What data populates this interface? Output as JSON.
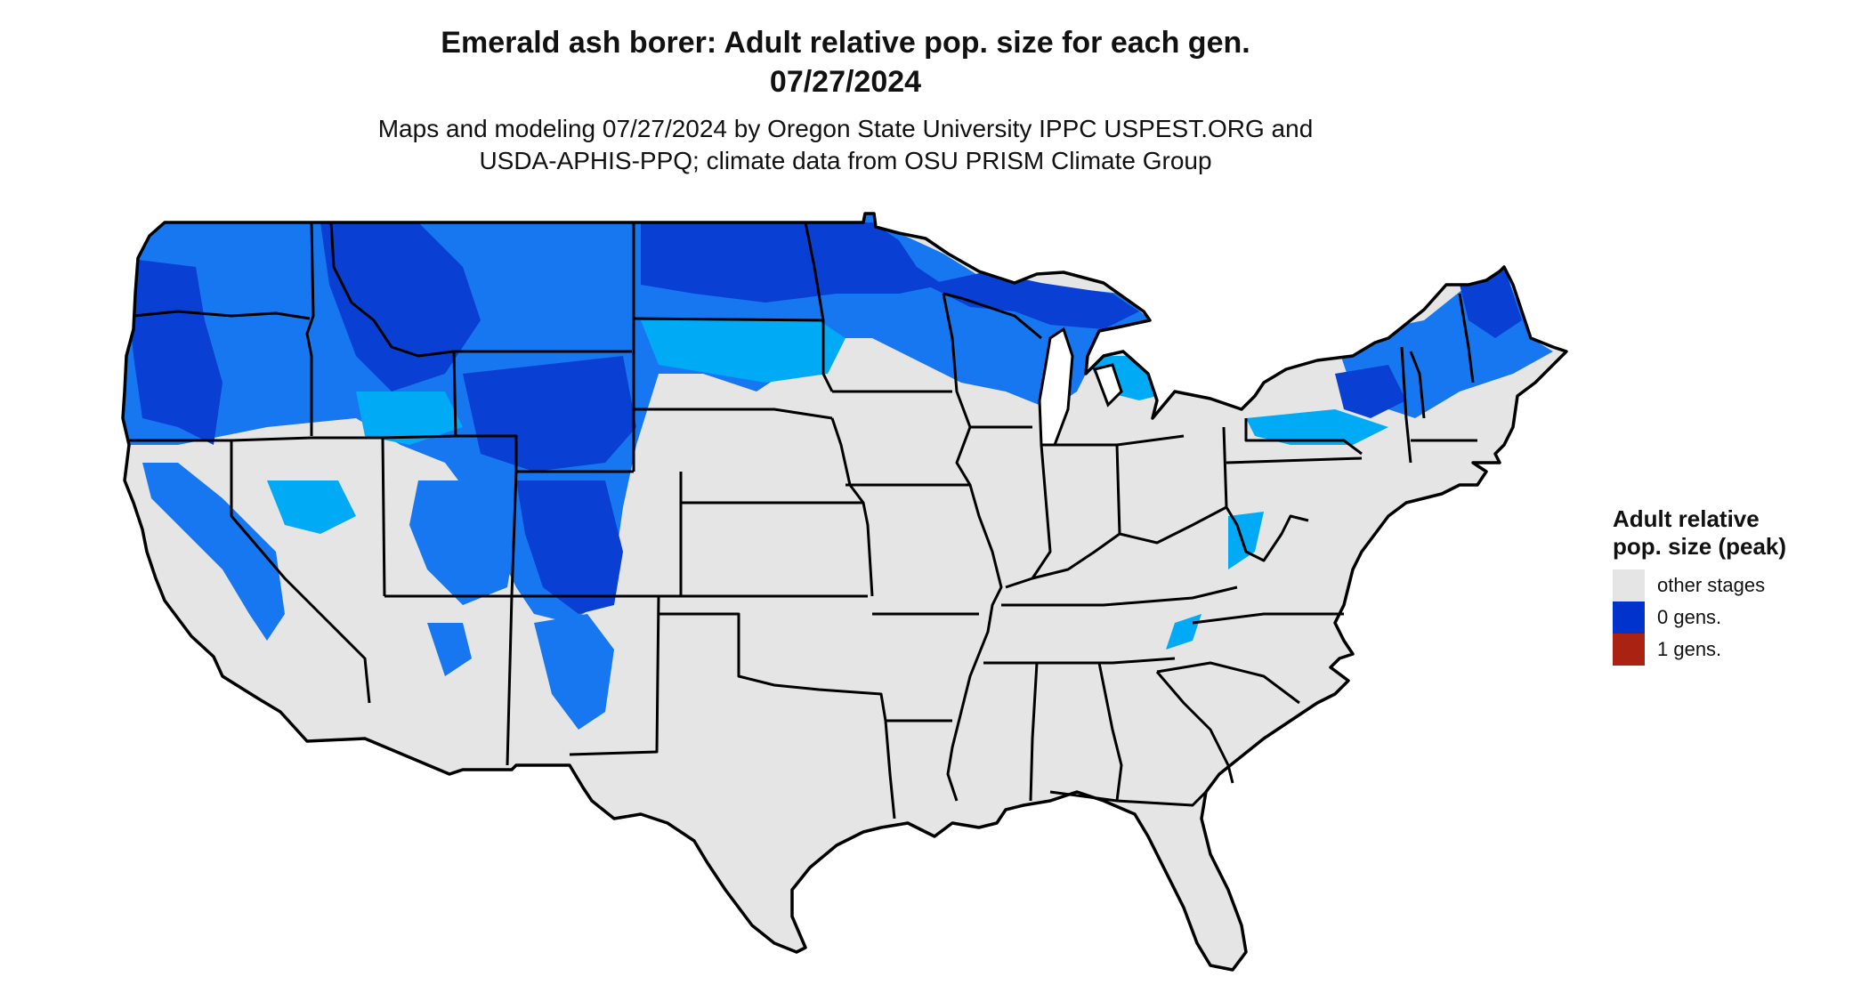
{
  "title": {
    "line1": "Emerald ash borer: Adult relative pop. size for each gen.",
    "line2": "07/27/2024"
  },
  "subtitle": {
    "line1": "Maps and modeling 07/27/2024 by Oregon State University IPPC USPEST.ORG and",
    "line2": "USDA-APHIS-PPQ; climate data from OSU PRISM Climate Group"
  },
  "legend": {
    "title": "Adult relative pop. size (peak)",
    "items": [
      {
        "label": "other stages",
        "color": "#e5e5e5"
      },
      {
        "label": "0 gens.",
        "color": "#0033cc"
      },
      {
        "label": "1 gens.",
        "color": "#aa2211"
      }
    ]
  },
  "map_colors": {
    "land": "#e5e5e5",
    "pop_high": "#0a3fd4",
    "pop_mid": "#1677f0",
    "pop_low": "#00aaf5",
    "border": "#000000"
  }
}
